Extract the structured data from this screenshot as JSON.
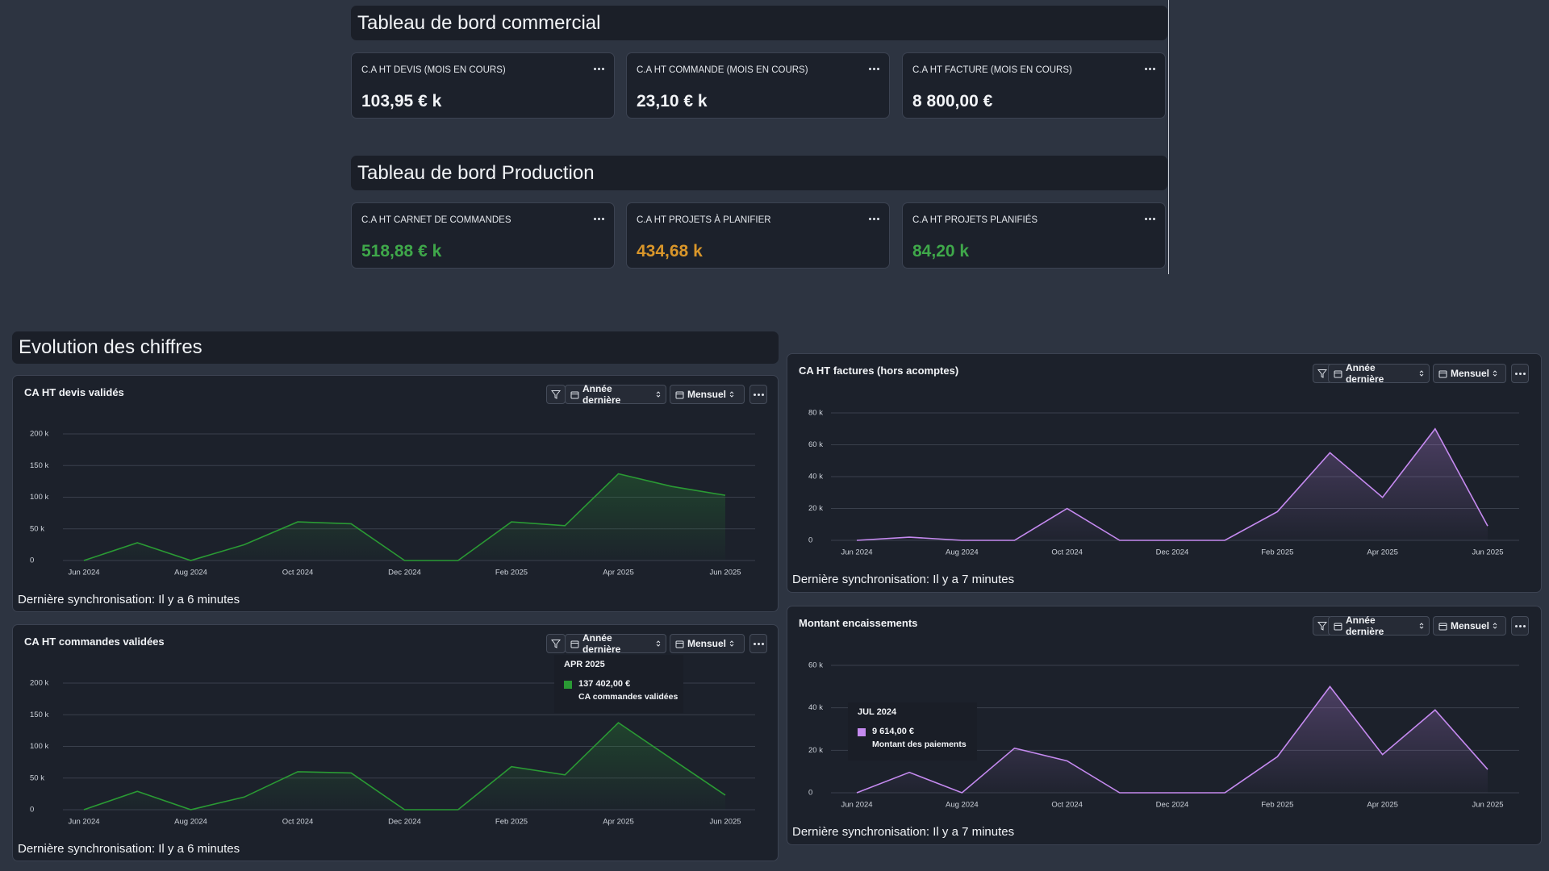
{
  "sections": [
    {
      "title": "Tableau de bord commercial",
      "cards": [
        {
          "label": "C.A HT DEVIS (MOIS EN COURS)",
          "value": "103,95 € k",
          "color": "#f2f4f7"
        },
        {
          "label": "C.A HT COMMANDE (MOIS EN COURS)",
          "value": "23,10 € k",
          "color": "#f2f4f7"
        },
        {
          "label": "C.A HT FACTURE (MOIS EN COURS)",
          "value": "8 800,00 €",
          "color": "#f2f4f7"
        }
      ]
    },
    {
      "title": "Tableau de bord Production",
      "cards": [
        {
          "label": "C.A HT CARNET DE COMMANDES",
          "value": "518,88 € k",
          "color": "#3fa84a"
        },
        {
          "label": "C.A HT PROJETS À PLANIFIER",
          "value": "434,68 k",
          "color": "#d9962a"
        },
        {
          "label": "C.A HT PROJETS PLANIFIÉS",
          "value": "84,20 k",
          "color": "#3fa84a"
        }
      ]
    }
  ],
  "evolution_title": "Evolution des chiffres",
  "chart_data": [
    {
      "type": "line",
      "title": "CA HT devis validés",
      "period": "Année dernière",
      "frequency": "Mensuel",
      "sync": "Dernière synchronisation: Il y a 6 minutes",
      "categories": [
        "Jun 2024",
        null,
        "Aug 2024",
        null,
        "Oct 2024",
        null,
        "Dec 2024",
        null,
        "Feb 2025",
        null,
        "Apr 2025",
        null,
        "Jun 2025"
      ],
      "values": [
        0,
        28000,
        0,
        25000,
        61000,
        58000,
        0,
        0,
        61000,
        55000,
        137000,
        117000,
        103000
      ],
      "color": "#2a9a34",
      "ylim": [
        0,
        200000
      ],
      "yticks": [
        0,
        {
          "value": 50000,
          "label": "50 k"
        },
        {
          "value": 100000,
          "label": "100 k"
        },
        {
          "value": 150000,
          "label": "150 k"
        },
        {
          "value": 200000,
          "label": "200 k"
        }
      ],
      "grid": true
    },
    {
      "type": "line",
      "title": "CA HT commandes validées",
      "period": "Année dernière",
      "frequency": "Mensuel",
      "sync": "Dernière synchronisation: Il y a 6 minutes",
      "categories": [
        "Jun 2024",
        null,
        "Aug 2024",
        null,
        "Oct 2024",
        null,
        "Dec 2024",
        null,
        "Feb 2025",
        null,
        "Apr 2025",
        null,
        "Jun 2025"
      ],
      "series": [
        {
          "name": "CA commandes validées",
          "color": "#2a9a34",
          "values": [
            0,
            29000,
            0,
            20000,
            60000,
            58000,
            0,
            0,
            68000,
            55000,
            137402,
            80000,
            23000
          ],
          "value_labels": [
            null,
            null,
            null,
            null,
            null,
            null,
            null,
            null,
            null,
            null,
            "137 402,00 €",
            null,
            null
          ]
        }
      ],
      "tooltip_title": "APR 2025",
      "ylim": [
        0,
        200000
      ],
      "yticks": [
        0,
        {
          "value": 50000,
          "label": "50 k"
        },
        {
          "value": 100000,
          "label": "100 k"
        },
        {
          "value": 150000,
          "label": "150 k"
        },
        {
          "value": 200000,
          "label": "200 k"
        }
      ],
      "grid": true
    },
    {
      "type": "line",
      "title": "CA HT factures (hors acomptes)",
      "period": "Année dernière",
      "frequency": "Mensuel",
      "sync": "Dernière synchronisation: Il y a 7 minutes",
      "categories": [
        "Jun 2024",
        null,
        "Aug 2024",
        null,
        "Oct 2024",
        null,
        "Dec 2024",
        null,
        "Feb 2025",
        null,
        "Apr 2025",
        null,
        "Jun 2025"
      ],
      "values": [
        0,
        2000,
        0,
        0,
        20000,
        0,
        0,
        0,
        18000,
        55000,
        27000,
        70000,
        9000
      ],
      "color": "#c58af0",
      "ylim": [
        0,
        80000
      ],
      "yticks": [
        0,
        {
          "value": 20000,
          "label": "20 k"
        },
        {
          "value": 40000,
          "label": "40 k"
        },
        {
          "value": 60000,
          "label": "60 k"
        },
        {
          "value": 80000,
          "label": "80 k"
        }
      ],
      "grid": true
    },
    {
      "type": "line",
      "title": "Montant encaissements",
      "period": "Année dernière",
      "frequency": "Mensuel",
      "sync": "Dernière synchronisation: Il y a 7 minutes",
      "categories": [
        "Jun 2024",
        null,
        "Aug 2024",
        null,
        "Oct 2024",
        null,
        "Dec 2024",
        null,
        "Feb 2025",
        null,
        "Apr 2025",
        null,
        "Jun 2025"
      ],
      "series": [
        {
          "name": "Montant des paiements",
          "color": "#c58af0",
          "values": [
            0,
            9614,
            0,
            21000,
            15000,
            0,
            0,
            0,
            17000,
            50000,
            18000,
            39000,
            11000
          ],
          "value_labels": [
            null,
            "9 614,00 €",
            null,
            null,
            null,
            null,
            null,
            null,
            null,
            null,
            null,
            null,
            null
          ]
        }
      ],
      "tooltip_title": "JUL 2024",
      "ylim": [
        0,
        60000
      ],
      "yticks": [
        0,
        {
          "value": 20000,
          "label": "20 k"
        },
        {
          "value": 40000,
          "label": "40 k"
        },
        {
          "value": 60000,
          "label": "60 k"
        }
      ],
      "grid": true
    }
  ]
}
